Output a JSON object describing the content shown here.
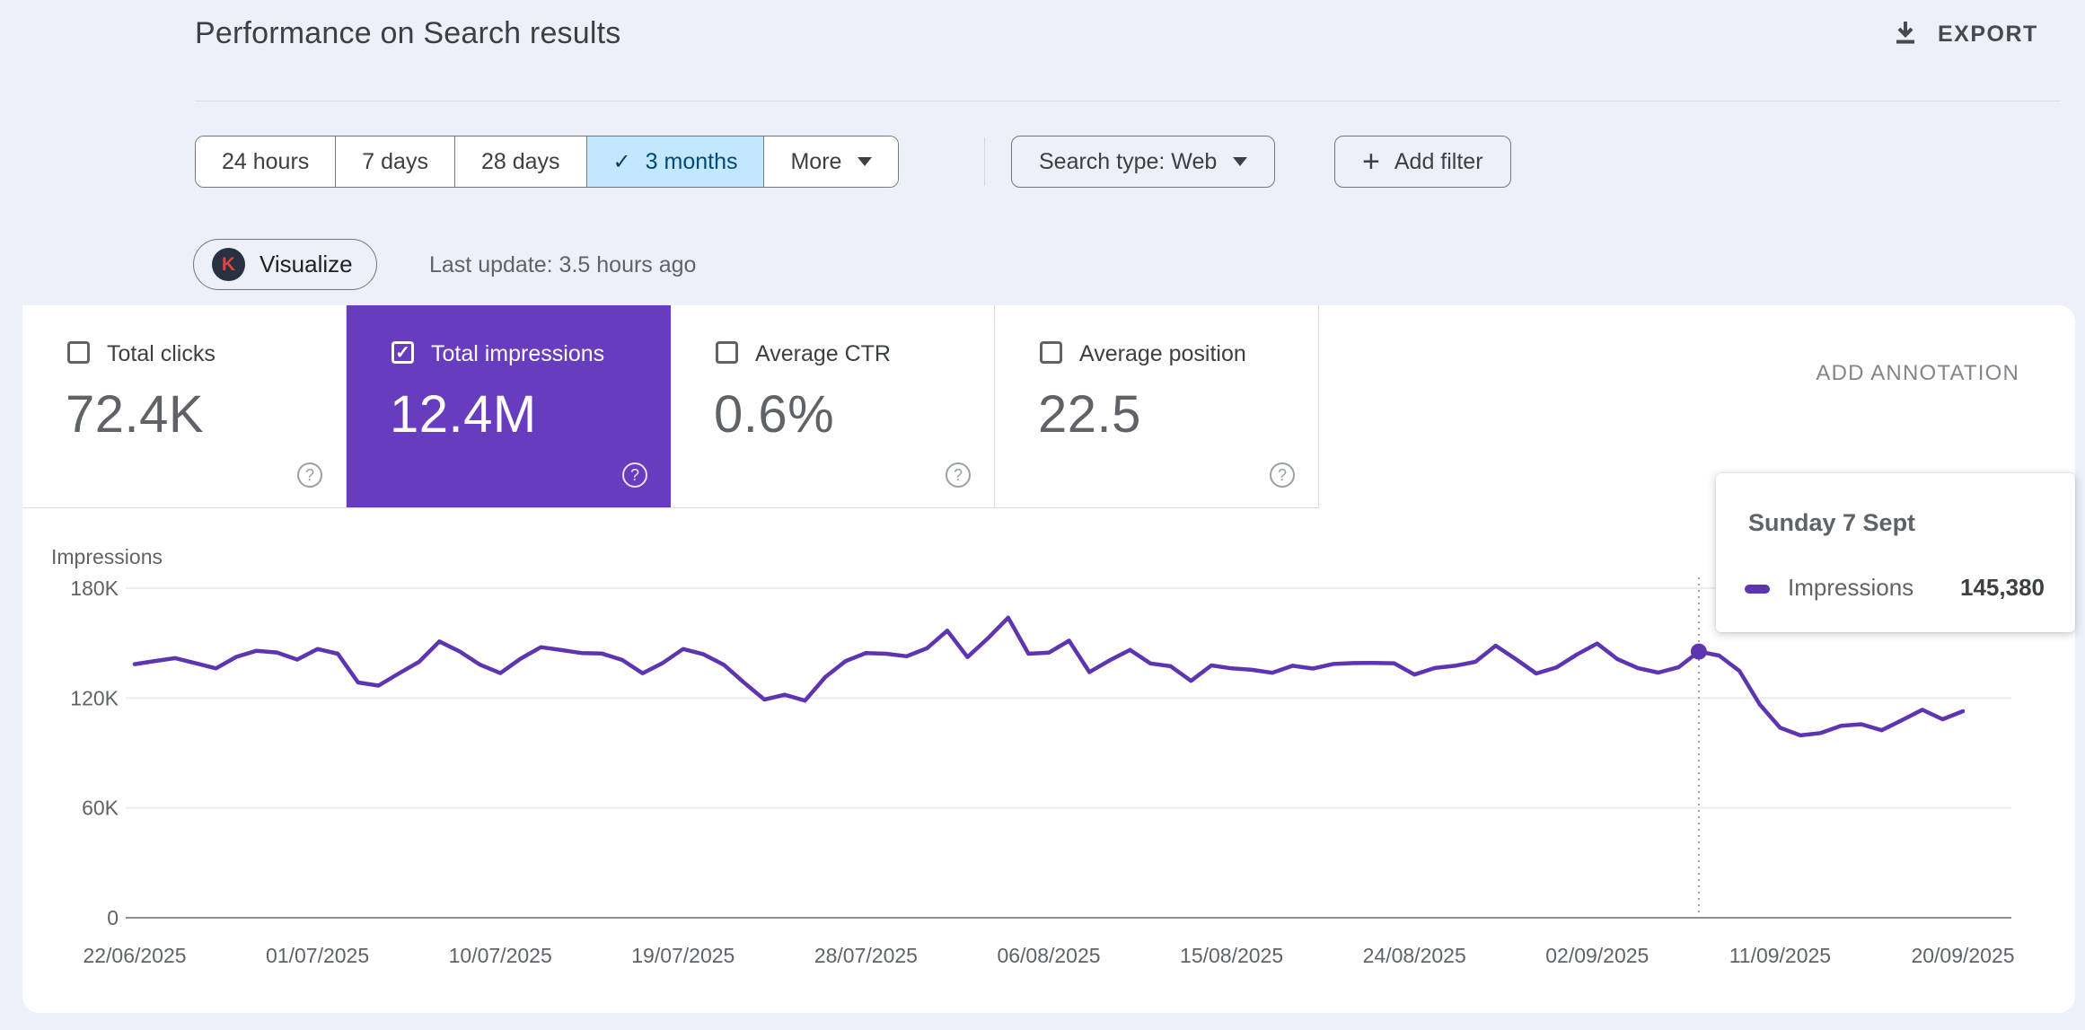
{
  "header": {
    "title": "Performance on Search results",
    "export_label": "EXPORT"
  },
  "filters": {
    "date_ranges": [
      {
        "label": "24 hours",
        "selected": false
      },
      {
        "label": "7 days",
        "selected": false
      },
      {
        "label": "28 days",
        "selected": false
      },
      {
        "label": "3 months",
        "selected": true
      }
    ],
    "more_label": "More",
    "search_type": "Search type: Web",
    "add_filter_label": "Add filter"
  },
  "toolbar": {
    "visualize_label": "Visualize",
    "visualize_icon_letter": "K",
    "last_update": "Last update: 3.5 hours ago"
  },
  "metrics": [
    {
      "label": "Total clicks",
      "value": "72.4K",
      "checked": false,
      "selected": false
    },
    {
      "label": "Total impressions",
      "value": "12.4M",
      "checked": true,
      "selected": true
    },
    {
      "label": "Average CTR",
      "value": "0.6%",
      "checked": false,
      "selected": false
    },
    {
      "label": "Average position",
      "value": "22.5",
      "checked": false,
      "selected": false
    }
  ],
  "annotation": {
    "add_label": "ADD ANNOTATION"
  },
  "tooltip": {
    "title": "Sunday 7 Sept",
    "series_label": "Impressions",
    "value": "145,380"
  },
  "colors": {
    "accent_purple": "#683cbe",
    "line_purple": "#5e35b1",
    "selected_chip_bg": "#c2e7ff",
    "selected_chip_text": "#004a77",
    "grid": "#eceef2",
    "zero_axis": "#8a8f98",
    "page_bg": "#edf0f9"
  },
  "chart_data": {
    "type": "line",
    "title": "Impressions over time",
    "ylabel": "Impressions",
    "ylim": [
      0,
      180000
    ],
    "y_ticks": [
      {
        "value": 0,
        "label": "0"
      },
      {
        "value": 60000,
        "label": "60K"
      },
      {
        "value": 120000,
        "label": "120K"
      },
      {
        "value": 180000,
        "label": "180K"
      }
    ],
    "x_tick_labels": [
      "22/06/2025",
      "01/07/2025",
      "10/07/2025",
      "19/07/2025",
      "28/07/2025",
      "06/08/2025",
      "15/08/2025",
      "24/08/2025",
      "02/09/2025",
      "11/09/2025",
      "20/09/2025"
    ],
    "x_tick_step_days": 9,
    "start_date": "22/06/2025",
    "end_date": "20/09/2025",
    "frequency": "daily",
    "grid": true,
    "legend_position": "none",
    "series": [
      {
        "name": "Impressions",
        "color": "#5e35b1",
        "values": [
          138500,
          140200,
          141800,
          139000,
          136200,
          142500,
          145800,
          144900,
          141000,
          146800,
          144200,
          128500,
          126800,
          133400,
          139800,
          150900,
          145400,
          138200,
          133600,
          141500,
          147800,
          146200,
          144600,
          144300,
          140800,
          133500,
          139200,
          146800,
          143900,
          138200,
          128400,
          119200,
          121800,
          118600,
          131500,
          140200,
          144600,
          144200,
          142800,
          147200,
          156800,
          142400,
          152600,
          163900,
          144200,
          144800,
          151300,
          134200,
          140600,
          146300,
          138900,
          137400,
          129400,
          137800,
          136200,
          135400,
          133800,
          137600,
          136100,
          138600,
          139100,
          139200,
          139000,
          132800,
          136400,
          137600,
          139800,
          148600,
          141200,
          133400,
          136800,
          143800,
          149800,
          141200,
          136400,
          133900,
          136800,
          145380,
          143200,
          134800,
          116500,
          103800,
          99600,
          100900,
          104800,
          105700,
          102400,
          107900,
          113600,
          108400,
          112800
        ]
      }
    ],
    "marked_point": {
      "index": 77,
      "date_label": "Sunday 7 Sept",
      "value": 145380
    }
  }
}
